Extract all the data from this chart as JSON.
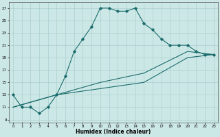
{
  "xlabel": "Humidex (Indice chaleur)",
  "ylabel": "",
  "bg_color": "#cce8e6",
  "grid_color": "#aacfcd",
  "line_color": "#1a6b6b",
  "xlim": [
    -0.5,
    23.5
  ],
  "ylim": [
    8.5,
    28
  ],
  "yticks": [
    9,
    11,
    13,
    15,
    17,
    19,
    21,
    23,
    25,
    27
  ],
  "xticks": [
    0,
    1,
    2,
    3,
    4,
    5,
    6,
    7,
    8,
    9,
    10,
    11,
    12,
    13,
    14,
    15,
    16,
    17,
    18,
    19,
    20,
    21,
    22,
    23
  ],
  "curve1_x": [
    0,
    1,
    2,
    3,
    4,
    5,
    6,
    7,
    8,
    9,
    10,
    11,
    12,
    13,
    14,
    15,
    16,
    17,
    18,
    19,
    20,
    21,
    22,
    23
  ],
  "curve1_y": [
    13,
    11,
    11,
    10,
    11,
    13,
    16,
    20,
    22,
    24,
    27,
    27,
    26.5,
    26.5,
    27,
    24.5,
    23.5,
    22,
    21,
    21,
    21,
    20,
    19.5,
    19.5
  ],
  "curve2_x": [
    0,
    5,
    10,
    15,
    20,
    23
  ],
  "curve2_y": [
    11,
    13,
    15,
    16.5,
    20,
    19.5
  ],
  "curve3_x": [
    0,
    5,
    10,
    15,
    20,
    23
  ],
  "curve3_y": [
    11,
    13,
    14,
    15,
    19,
    19.5
  ]
}
